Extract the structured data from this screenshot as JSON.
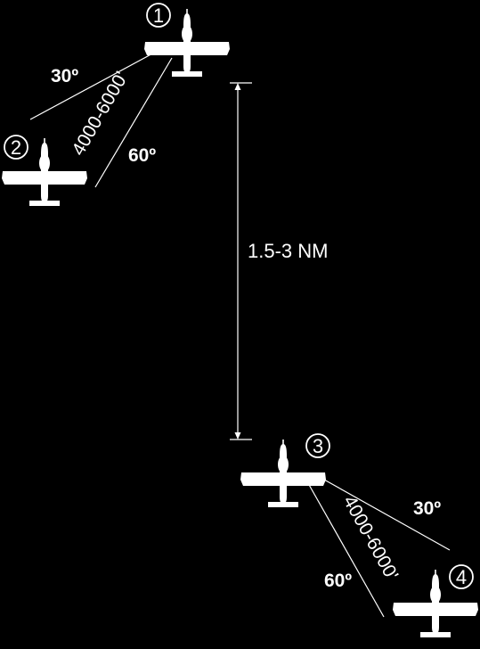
{
  "colors": {
    "background": "#000000",
    "foreground": "#ffffff"
  },
  "aircraft": [
    {
      "number": "1",
      "icon": "airplane-icon"
    },
    {
      "number": "2",
      "icon": "airplane-icon"
    },
    {
      "number": "3",
      "icon": "airplane-icon"
    },
    {
      "number": "4",
      "icon": "airplane-icon"
    }
  ],
  "upper_pair": {
    "angle_near": "30º",
    "angle_far": "60º",
    "distance": "4000-6000'"
  },
  "lower_pair": {
    "angle_near": "30º",
    "angle_far": "60º",
    "distance": "4000-6000'"
  },
  "separation": "1.5-3 NM"
}
